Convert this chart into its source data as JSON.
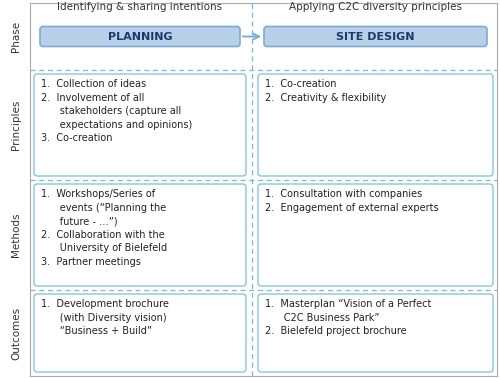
{
  "col_headers": [
    "Identifying & sharing intentions",
    "Applying C2C diversity principles"
  ],
  "row_labels": [
    "Phase",
    "Principles",
    "Methods",
    "Outcomes"
  ],
  "phase_boxes": [
    "PLANNING",
    "SITE DESIGN"
  ],
  "principles_left": "1.  Collection of ideas\n2.  Involvement of all\n      stakeholders (capture all\n      expectations and opinions)\n3.  Co-creation",
  "principles_right": "1.  Co-creation\n2.  Creativity & flexibility",
  "methods_left": "1.  Workshops/Series of\n      events (“Planning the\n      future - …”)\n2.  Collaboration with the\n      University of Bielefeld\n3.  Partner meetings",
  "methods_right": "1.  Consultation with companies\n2.  Engagement of external experts",
  "outcomes_left": "1.  Development brochure\n      (with Diversity vision)\n      “Business + Build”",
  "outcomes_right": "1.  Masterplan “Vision of a Perfect\n      C2C Business Park”\n2.  Bielefeld project brochure",
  "box_fill_blue": "#b8cfe8",
  "box_edge_blue": "#7aadd0",
  "content_box_fill": "#ffffff",
  "content_box_edge": "#7ac0d8",
  "row_label_color": "#333333",
  "header_color": "#333333",
  "dashed_line_color": "#7ab8d8",
  "text_color": "#222222",
  "bg_color": "#ffffff",
  "outer_border_color": "#aaaaaa",
  "phase_text_color": "#1a3a6a"
}
